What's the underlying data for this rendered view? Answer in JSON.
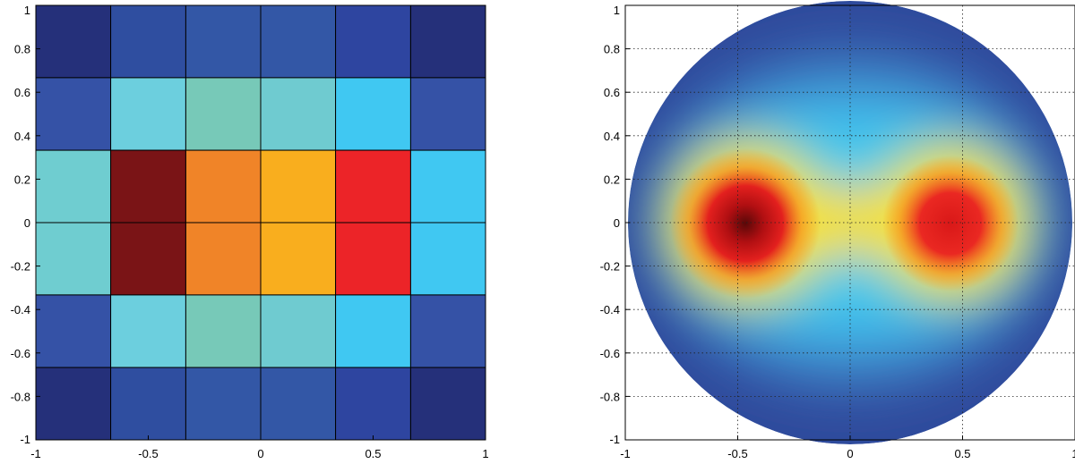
{
  "chart_data": [
    {
      "type": "heatmap",
      "title": "",
      "xlabel": "",
      "ylabel": "",
      "xlim": [
        -1,
        1
      ],
      "ylim": [
        -1,
        1
      ],
      "grid": false,
      "x_ticks": [
        "-1",
        "-0.5",
        "0",
        "0.5",
        "1"
      ],
      "y_ticks": [
        "1",
        "0.8",
        "0.6",
        "0.4",
        "0.2",
        "0",
        "-0.2",
        "-0.4",
        "-0.6",
        "-0.8",
        "-1"
      ],
      "x_edges": [
        -1,
        -0.667,
        -0.333,
        0,
        0.333,
        0.667,
        1
      ],
      "y_edges": [
        1,
        0.667,
        0.333,
        0,
        -0.333,
        -0.667,
        -1
      ],
      "colors": [
        [
          "#25307a",
          "#2f4ea0",
          "#3357a6",
          "#3357a6",
          "#2e45a0",
          "#25307a"
        ],
        [
          "#3552a6",
          "#6ccfde",
          "#77c9b8",
          "#6fcbd0",
          "#40c8f2",
          "#3552a6"
        ],
        [
          "#6fcdd0",
          "#7a1416",
          "#f08428",
          "#f9ae1e",
          "#ec2428",
          "#40c8f2"
        ],
        [
          "#6fcdd0",
          "#7a1416",
          "#f08428",
          "#f9ae1e",
          "#ec2428",
          "#40c8f2"
        ],
        [
          "#3552a6",
          "#6ccfde",
          "#77c9b8",
          "#6fcbd0",
          "#40c8f2",
          "#3552a6"
        ],
        [
          "#25307a",
          "#2f4ea0",
          "#3357a6",
          "#3357a6",
          "#2e45a0",
          "#25307a"
        ]
      ]
    },
    {
      "type": "heatmap",
      "title": "",
      "xlabel": "",
      "ylabel": "",
      "xlim": [
        -1,
        1
      ],
      "ylim": [
        -1,
        1
      ],
      "grid": true,
      "domain_shape": "unit disk",
      "x_ticks": [
        "-1",
        "-0.5",
        "0",
        "0.5",
        "1"
      ],
      "y_ticks": [
        "1",
        "0.8",
        "0.6",
        "0.4",
        "0.2",
        "0",
        "-0.2",
        "-0.4",
        "-0.6",
        "-0.8",
        "-1"
      ],
      "peaks": [
        {
          "x": -0.48,
          "y": 0.0,
          "level": "maximum"
        },
        {
          "x": 0.45,
          "y": 0.0,
          "level": "high"
        }
      ],
      "colormap": [
        "#2f4a9c",
        "#3f86c8",
        "#3ec5ee",
        "#ffe42a",
        "#f9a11b",
        "#e5201f",
        "#7a0d0d"
      ]
    }
  ]
}
